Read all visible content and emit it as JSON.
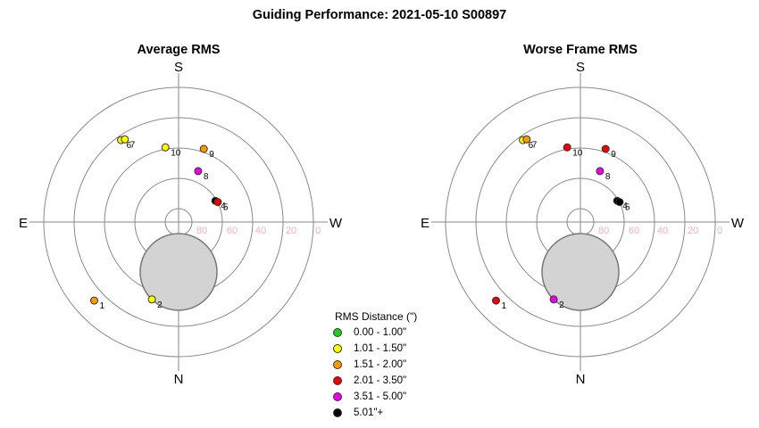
{
  "title": "Guiding Performance: 2021-05-10 S00897",
  "legend": {
    "title": "RMS Distance (\")",
    "items": [
      {
        "label": "0.00 - 1.00\"",
        "color": "#22cc22"
      },
      {
        "label": "1.01 - 1.50\"",
        "color": "#ffff00"
      },
      {
        "label": "1.51 - 2.00\"",
        "color": "#ff9900"
      },
      {
        "label": "2.01 - 3.50\"",
        "color": "#ee0000"
      },
      {
        "label": "3.51 - 5.00\"",
        "color": "#ee00ee"
      },
      {
        "label": "5.01\"+",
        "color": "#000000"
      }
    ]
  },
  "chart_data": [
    {
      "type": "scatter",
      "projection": "polar",
      "title": "Average RMS",
      "direction_labels": {
        "top": "S",
        "bottom": "N",
        "left": "E",
        "right": "W"
      },
      "radial_ticks": [
        "80",
        "60",
        "40",
        "20",
        "0"
      ],
      "radial_range": [
        90,
        0
      ],
      "rings": [
        80,
        60,
        40,
        20,
        0
      ],
      "blocked_region_color": "#d3d3d3",
      "points": [
        {
          "label": "1",
          "alt": 14,
          "az": 133,
          "color": "#ff9900"
        },
        {
          "label": "2",
          "alt": 36,
          "az": 161,
          "color": "#ffff00"
        },
        {
          "label": "4",
          "alt": 62,
          "az": 300,
          "color": "#000000"
        },
        {
          "label": "5",
          "alt": 61,
          "az": 297,
          "color": "#ee0000"
        },
        {
          "label": "6",
          "alt": 24,
          "az": 35,
          "color": "#ffff00"
        },
        {
          "label": "7",
          "alt": 25,
          "az": 33,
          "color": "#ffff00"
        },
        {
          "label": "8",
          "alt": 54,
          "az": 339,
          "color": "#ee00ee"
        },
        {
          "label": "9",
          "alt": 39,
          "az": 341,
          "color": "#ff9900"
        },
        {
          "label": "10",
          "alt": 40,
          "az": 10,
          "color": "#ffff00"
        }
      ]
    },
    {
      "type": "scatter",
      "projection": "polar",
      "title": "Worse Frame RMS",
      "direction_labels": {
        "top": "S",
        "bottom": "N",
        "left": "E",
        "right": "W"
      },
      "radial_ticks": [
        "80",
        "60",
        "40",
        "20",
        "0"
      ],
      "radial_range": [
        90,
        0
      ],
      "rings": [
        80,
        60,
        40,
        20,
        0
      ],
      "blocked_region_color": "#d3d3d3",
      "points": [
        {
          "label": "1",
          "alt": 14,
          "az": 133,
          "color": "#ee0000"
        },
        {
          "label": "2",
          "alt": 36,
          "az": 161,
          "color": "#ee00ee"
        },
        {
          "label": "4",
          "alt": 62,
          "az": 300,
          "color": "#000000"
        },
        {
          "label": "5",
          "alt": 61,
          "az": 297,
          "color": "#000000"
        },
        {
          "label": "6",
          "alt": 24,
          "az": 35,
          "color": "#ffff00"
        },
        {
          "label": "7",
          "alt": 25,
          "az": 33,
          "color": "#ff9900"
        },
        {
          "label": "8",
          "alt": 54,
          "az": 339,
          "color": "#ee00ee"
        },
        {
          "label": "9",
          "alt": 39,
          "az": 341,
          "color": "#ee0000"
        },
        {
          "label": "10",
          "alt": 40,
          "az": 10,
          "color": "#ee0000"
        }
      ]
    }
  ]
}
